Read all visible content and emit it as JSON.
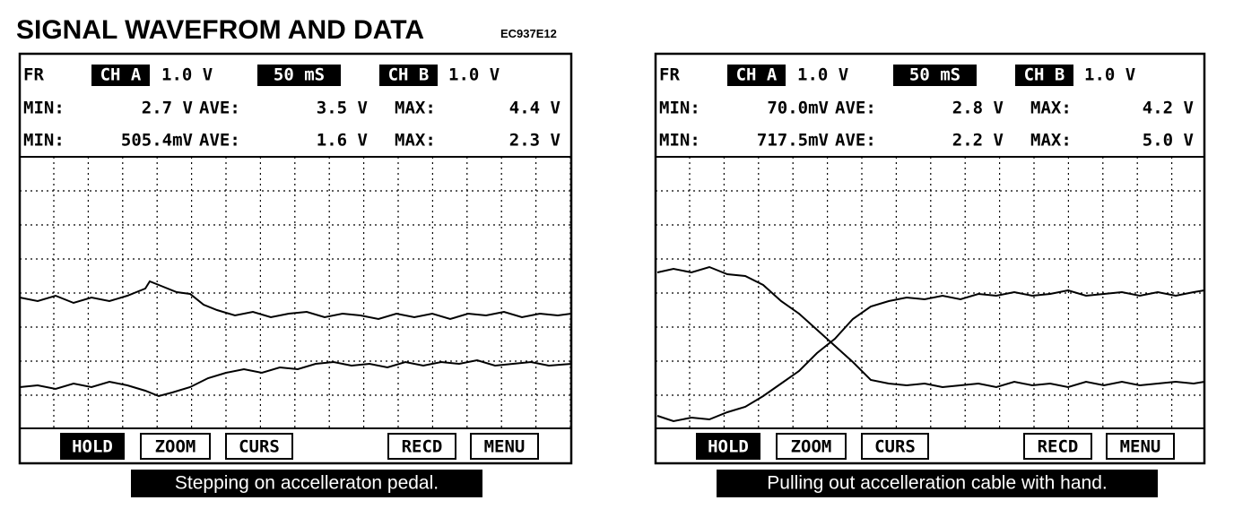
{
  "header": {
    "title": "SIGNAL WAVEFROM AND DATA",
    "code": "EC937E12"
  },
  "screens": [
    {
      "status": {
        "fr": "FR",
        "ch_a": "CH A",
        "ch_a_scale": "1.0 V",
        "timebase": "50 mS",
        "ch_b": "CH B",
        "ch_b_scale": "1.0 V"
      },
      "rows": [
        {
          "min_label": "MIN:",
          "min": "2.7 V",
          "ave_label": "AVE:",
          "ave": "3.5 V",
          "max_label": "MAX:",
          "max": "4.4 V"
        },
        {
          "min_label": "MIN:",
          "min": "505.4mV",
          "ave_label": "AVE:",
          "ave": "1.6 V",
          "max_label": "MAX:",
          "max": "2.3 V"
        }
      ],
      "buttons": [
        "HOLD",
        "ZOOM",
        "CURS",
        "RECD",
        "MENU"
      ],
      "caption": "Stepping on accelleraton pedal."
    },
    {
      "status": {
        "fr": "FR",
        "ch_a": "CH A",
        "ch_a_scale": "1.0 V",
        "timebase": "50 mS",
        "ch_b": "CH B",
        "ch_b_scale": "1.0 V"
      },
      "rows": [
        {
          "min_label": "MIN:",
          "min": "70.0mV",
          "ave_label": "AVE:",
          "ave": "2.8 V",
          "max_label": "MAX:",
          "max": "4.2 V"
        },
        {
          "min_label": "MIN:",
          "min": "717.5mV",
          "ave_label": "AVE:",
          "ave": "2.2 V",
          "max_label": "MAX:",
          "max": "5.0 V"
        }
      ],
      "buttons": [
        "HOLD",
        "ZOOM",
        "CURS",
        "RECD",
        "MENU"
      ],
      "caption": "Pulling out accelleration cable with hand."
    }
  ]
}
